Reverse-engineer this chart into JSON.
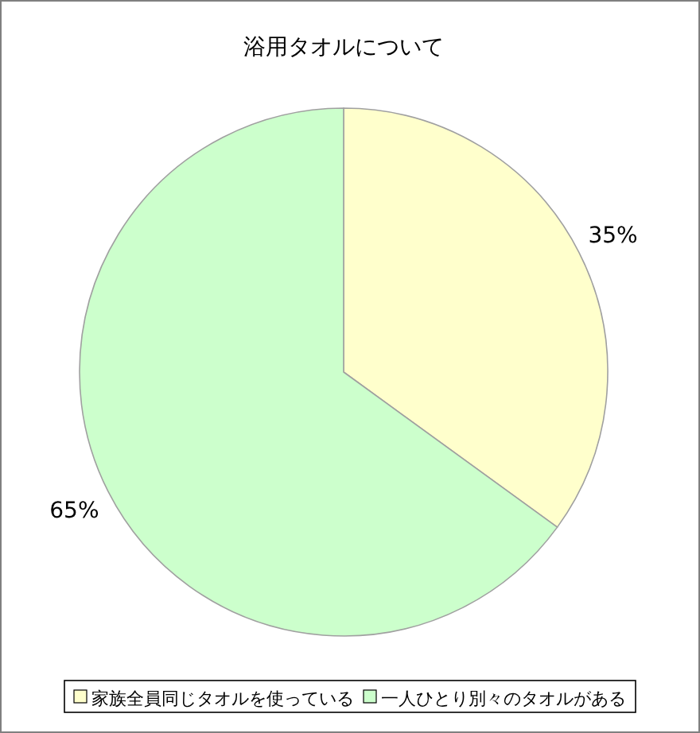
{
  "chart_data": {
    "type": "pie",
    "title": "浴用タオルについて",
    "categories": [
      "家族全員同じタオルを使っている",
      "一人ひとり別々のタオルがある"
    ],
    "values": [
      35,
      65
    ],
    "colors": [
      "#ffffcc",
      "#ccffcc"
    ],
    "value_labels": [
      "35%",
      "65%"
    ],
    "legend": "bottom"
  }
}
